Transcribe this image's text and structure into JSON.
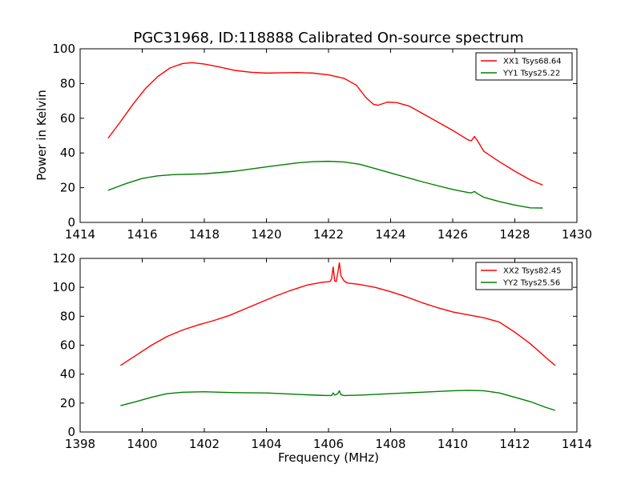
{
  "chart_data": [
    {
      "type": "line",
      "title": "PGC31968, ID:118888 Calibrated On-source spectrum",
      "xlabel": "",
      "ylabel": "Power in Kelvin",
      "xlim": [
        1414,
        1430
      ],
      "ylim": [
        0,
        100
      ],
      "xticks": [
        "1414",
        "1416",
        "1418",
        "1420",
        "1422",
        "1424",
        "1426",
        "1428",
        "1430"
      ],
      "yticks": [
        "0",
        "20",
        "40",
        "60",
        "80",
        "100"
      ],
      "legend_position": "top-right",
      "series": [
        {
          "name": "XX1 Tsys68.64",
          "color": "#ff0000",
          "points": [
            [
              1414.9,
              48.5
            ],
            [
              1415.3,
              58
            ],
            [
              1415.7,
              68
            ],
            [
              1416.1,
              77
            ],
            [
              1416.5,
              84
            ],
            [
              1416.9,
              89
            ],
            [
              1417.3,
              91.5
            ],
            [
              1417.6,
              92
            ],
            [
              1418.0,
              91.2
            ],
            [
              1418.5,
              89.5
            ],
            [
              1419.0,
              87.5
            ],
            [
              1419.5,
              86.5
            ],
            [
              1420.0,
              86
            ],
            [
              1420.5,
              86.2
            ],
            [
              1421.0,
              86.3
            ],
            [
              1421.5,
              86
            ],
            [
              1422.0,
              85
            ],
            [
              1422.5,
              83
            ],
            [
              1422.9,
              79
            ],
            [
              1423.2,
              72
            ],
            [
              1423.45,
              68
            ],
            [
              1423.6,
              67.5
            ],
            [
              1423.9,
              69.3
            ],
            [
              1424.2,
              69
            ],
            [
              1424.6,
              67
            ],
            [
              1425.0,
              63
            ],
            [
              1425.5,
              58
            ],
            [
              1426.0,
              53
            ],
            [
              1426.5,
              47.5
            ],
            [
              1426.6,
              47
            ],
            [
              1426.7,
              49.5
            ],
            [
              1426.8,
              47
            ],
            [
              1427.0,
              41
            ],
            [
              1427.5,
              35
            ],
            [
              1428.0,
              29.5
            ],
            [
              1428.5,
              24.5
            ],
            [
              1428.9,
              21.5
            ]
          ]
        },
        {
          "name": "YY1 Tsys25.22",
          "color": "#008000",
          "points": [
            [
              1414.9,
              18.5
            ],
            [
              1415.5,
              22.5
            ],
            [
              1416.0,
              25.3
            ],
            [
              1416.5,
              26.8
            ],
            [
              1417.0,
              27.5
            ],
            [
              1418.0,
              28
            ],
            [
              1419.0,
              29.5
            ],
            [
              1420.0,
              32
            ],
            [
              1421.0,
              34.3
            ],
            [
              1421.5,
              35
            ],
            [
              1422.0,
              35.2
            ],
            [
              1422.5,
              34.8
            ],
            [
              1423.0,
              33.5
            ],
            [
              1423.5,
              31
            ],
            [
              1424.0,
              28.5
            ],
            [
              1424.5,
              26
            ],
            [
              1425.0,
              23.5
            ],
            [
              1425.5,
              21.2
            ],
            [
              1426.0,
              19
            ],
            [
              1426.5,
              17.2
            ],
            [
              1426.6,
              17
            ],
            [
              1426.7,
              17.8
            ],
            [
              1426.8,
              16.5
            ],
            [
              1427.0,
              14.5
            ],
            [
              1427.5,
              12
            ],
            [
              1428.0,
              10
            ],
            [
              1428.5,
              8.4
            ],
            [
              1428.9,
              8.3
            ]
          ]
        }
      ]
    },
    {
      "type": "line",
      "title": "",
      "xlabel": "Frequency (MHz)",
      "ylabel": "",
      "xlim": [
        1398,
        1414
      ],
      "ylim": [
        0,
        120
      ],
      "xticks": [
        "1398",
        "1400",
        "1402",
        "1404",
        "1406",
        "1408",
        "1410",
        "1412",
        "1414"
      ],
      "yticks": [
        "0",
        "20",
        "40",
        "60",
        "80",
        "100",
        "120"
      ],
      "legend_position": "top-right",
      "series": [
        {
          "name": "XX2 Tsys82.45",
          "color": "#ff0000",
          "points": [
            [
              1399.3,
              46
            ],
            [
              1399.8,
              53
            ],
            [
              1400.3,
              60
            ],
            [
              1400.8,
              66
            ],
            [
              1401.3,
              70.5
            ],
            [
              1401.8,
              74
            ],
            [
              1402.3,
              77
            ],
            [
              1402.8,
              80.5
            ],
            [
              1403.3,
              85
            ],
            [
              1403.8,
              89.5
            ],
            [
              1404.3,
              94
            ],
            [
              1404.8,
              98
            ],
            [
              1405.3,
              101.5
            ],
            [
              1405.8,
              103.5
            ],
            [
              1406.05,
              104
            ],
            [
              1406.1,
              106
            ],
            [
              1406.15,
              114
            ],
            [
              1406.2,
              104.5
            ],
            [
              1406.25,
              104
            ],
            [
              1406.3,
              110
            ],
            [
              1406.35,
              117
            ],
            [
              1406.4,
              108
            ],
            [
              1406.5,
              104.5
            ],
            [
              1406.6,
              103
            ],
            [
              1407.0,
              102
            ],
            [
              1407.5,
              100
            ],
            [
              1408.0,
              97
            ],
            [
              1408.5,
              93.5
            ],
            [
              1409.0,
              89.5
            ],
            [
              1409.5,
              86
            ],
            [
              1410.0,
              83
            ],
            [
              1410.5,
              81
            ],
            [
              1411.0,
              79
            ],
            [
              1411.5,
              76
            ],
            [
              1412.0,
              69
            ],
            [
              1412.5,
              61
            ],
            [
              1413.0,
              51.5
            ],
            [
              1413.3,
              46
            ]
          ]
        },
        {
          "name": "YY2 Tsys25.56",
          "color": "#008000",
          "points": [
            [
              1399.3,
              18.2
            ],
            [
              1399.8,
              21
            ],
            [
              1400.3,
              24
            ],
            [
              1400.8,
              26.5
            ],
            [
              1401.3,
              27.5
            ],
            [
              1402.0,
              27.8
            ],
            [
              1402.5,
              27.5
            ],
            [
              1403.0,
              27.2
            ],
            [
              1404.0,
              27
            ],
            [
              1405.0,
              26
            ],
            [
              1405.8,
              25.3
            ],
            [
              1406.1,
              25.2
            ],
            [
              1406.15,
              27
            ],
            [
              1406.2,
              25.5
            ],
            [
              1406.3,
              26.5
            ],
            [
              1406.35,
              28.5
            ],
            [
              1406.4,
              25.8
            ],
            [
              1406.5,
              25.2
            ],
            [
              1407.0,
              25.5
            ],
            [
              1408.0,
              26.5
            ],
            [
              1409.0,
              27.5
            ],
            [
              1410.0,
              28.5
            ],
            [
              1410.5,
              28.8
            ],
            [
              1411.0,
              28.5
            ],
            [
              1411.5,
              27
            ],
            [
              1412.0,
              24
            ],
            [
              1412.5,
              21
            ],
            [
              1413.0,
              17
            ],
            [
              1413.3,
              15
            ]
          ]
        }
      ]
    }
  ]
}
